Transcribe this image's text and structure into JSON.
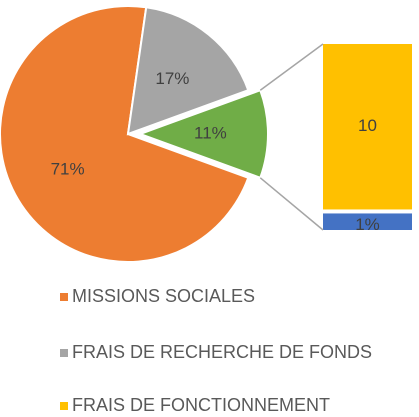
{
  "chart_data": {
    "type": "pie",
    "categories": [
      "MISSIONS SOCIALES",
      "FRAIS DE RECHERCHE DE FONDS",
      null
    ],
    "values": [
      71,
      17,
      11
    ],
    "value_labels": [
      "71%",
      "17%",
      "11%"
    ],
    "colors": [
      "#ed7d31",
      "#a5a5a5",
      "#70ad47"
    ],
    "bar": {
      "categories": [
        "FRAIS DE FONCTIONNEMENT",
        null
      ],
      "values": [
        10,
        1
      ],
      "value_labels": [
        "10",
        "1%"
      ],
      "colors": [
        "#ffc000",
        "#4472c4"
      ]
    }
  }
}
